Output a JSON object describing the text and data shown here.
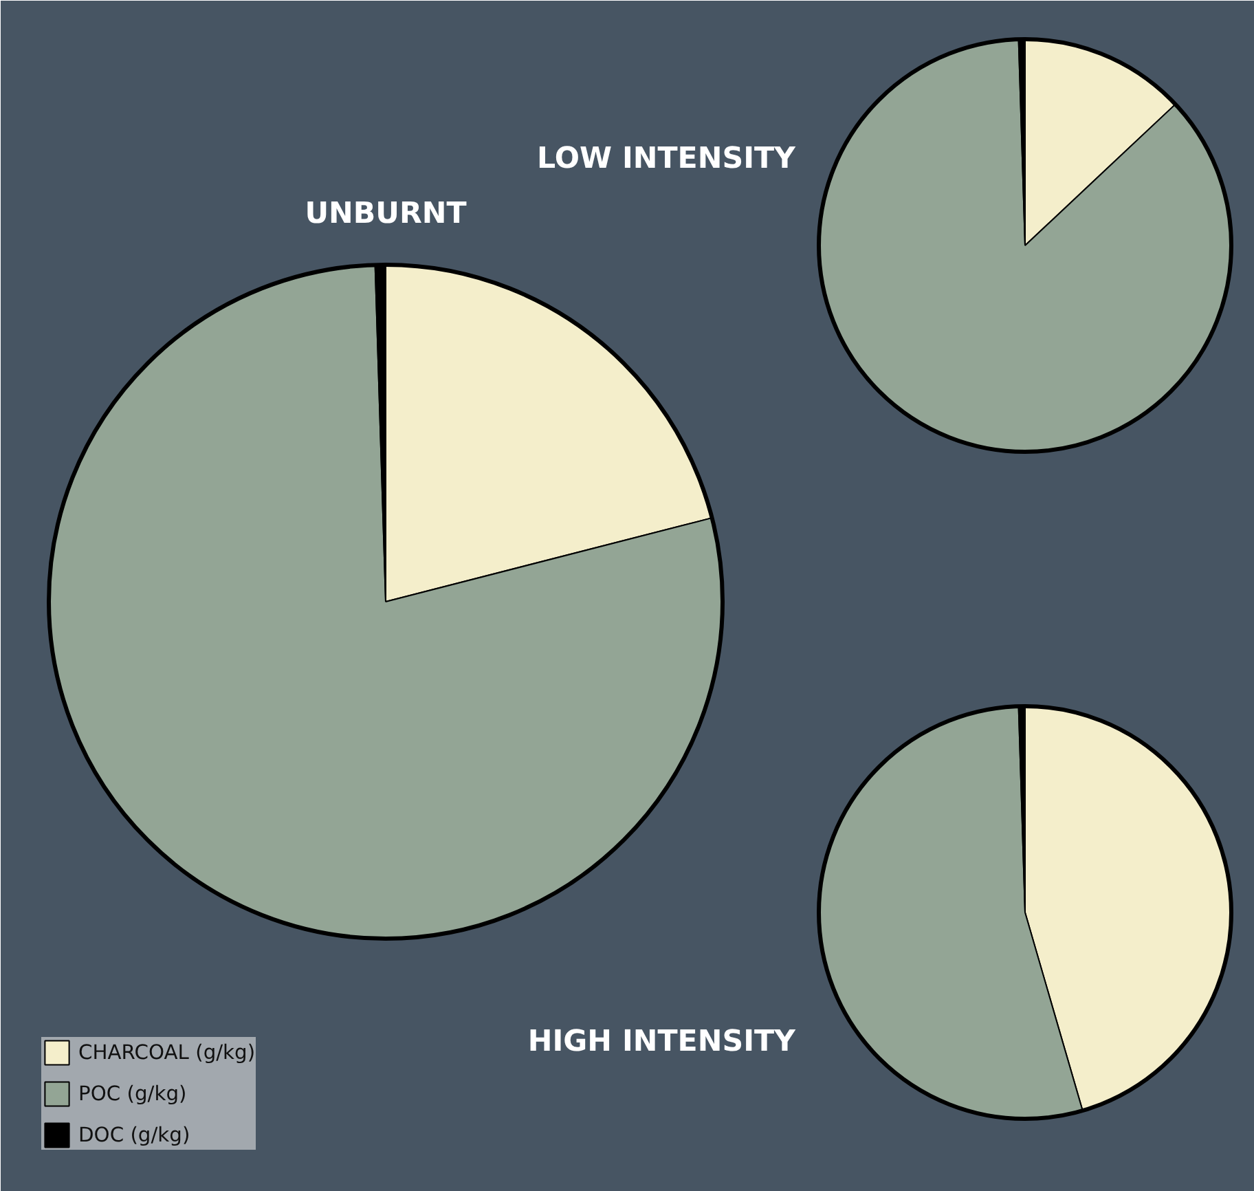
{
  "chart_data": [
    {
      "type": "pie",
      "title": "UNBURNT",
      "categories": [
        "CHARCOAL (g/kg)",
        "POC (g/kg)",
        "DOC (g/kg)"
      ],
      "values": [
        21,
        78.5,
        0.5
      ],
      "colors": [
        "#f4eecb",
        "#93a595",
        "#000000"
      ],
      "legend": "bottom left"
    },
    {
      "type": "pie",
      "title": "LOW INTENSITY",
      "values": [
        13,
        86.5,
        0.5
      ],
      "colors": [
        "#f4eecb",
        "#93a595",
        "#000000"
      ]
    },
    {
      "type": "pie",
      "title": "HIGH INTENSITY",
      "values": [
        45.5,
        54,
        0.5
      ],
      "colors": [
        "#f4eecb",
        "#93a595",
        "#000000"
      ]
    }
  ]
}
